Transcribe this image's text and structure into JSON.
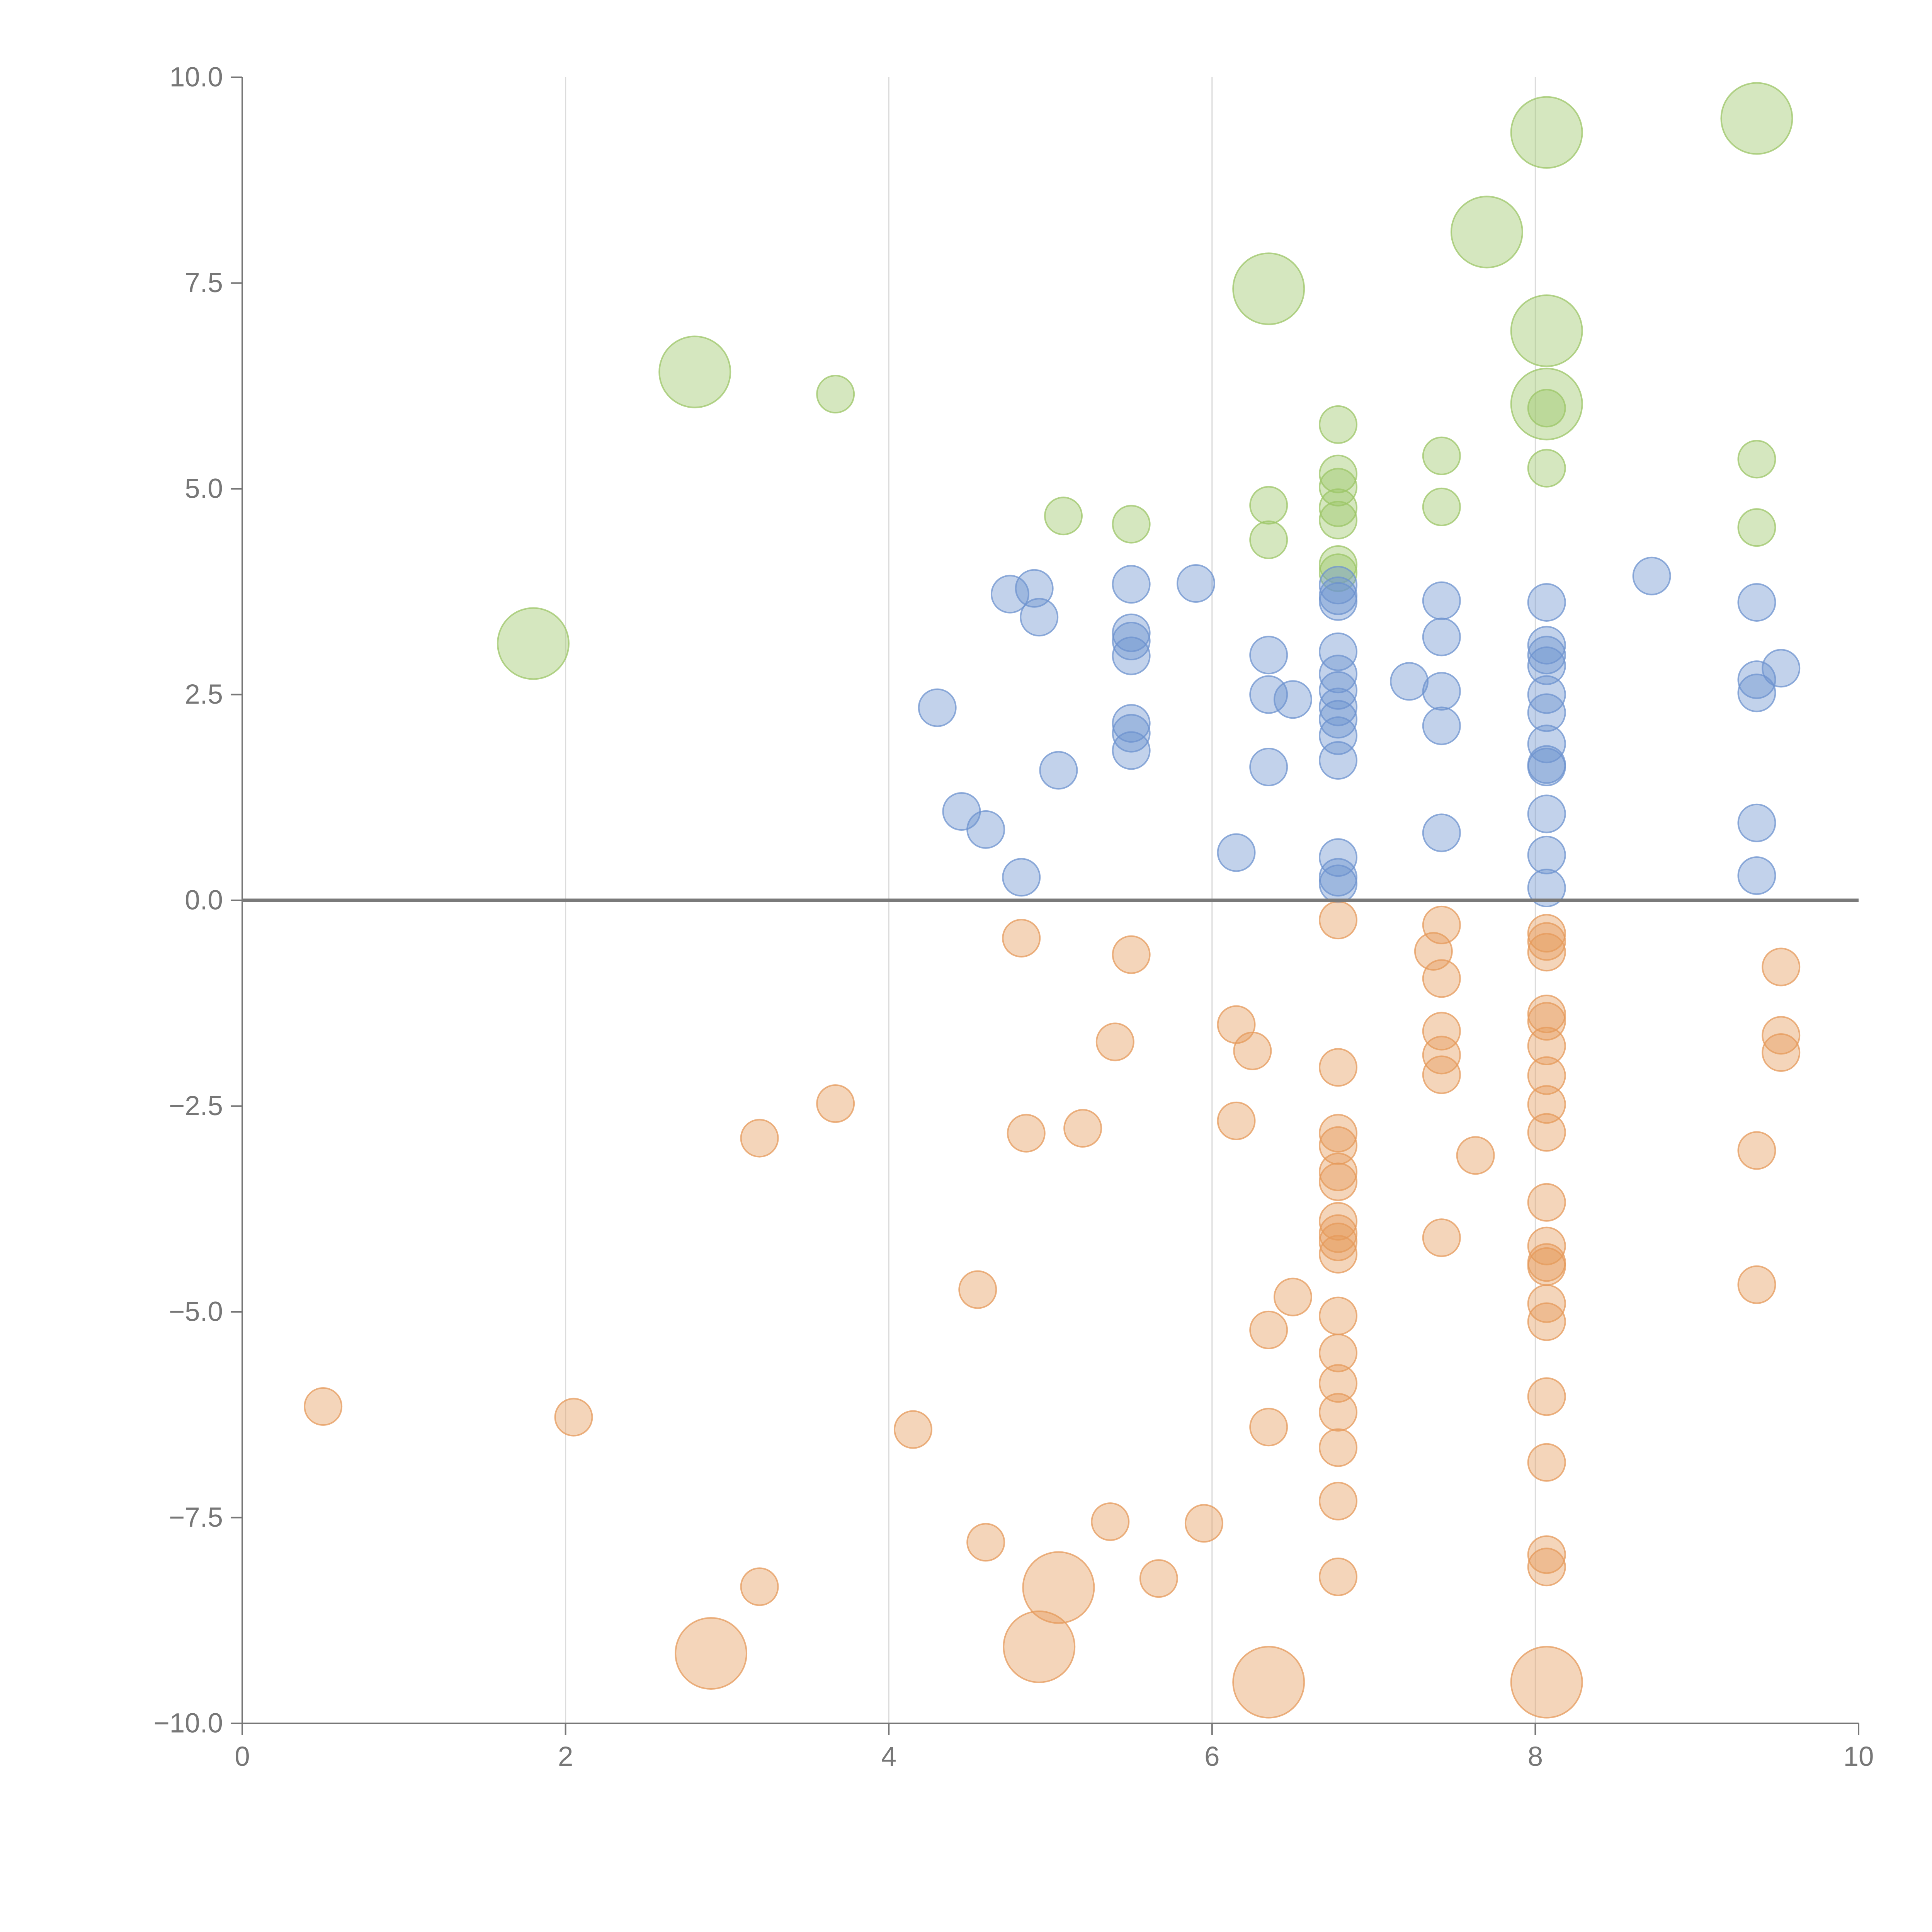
{
  "chart_data": {
    "type": "scatter",
    "title": "",
    "xlabel": "",
    "ylabel": "",
    "xlim": [
      0,
      10
    ],
    "ylim": [
      -10,
      10
    ],
    "grid": "vertical",
    "legend": "none",
    "x_ticks": [
      0,
      2,
      4,
      6,
      8,
      10
    ],
    "x_tick_labels": [
      "0",
      "2",
      "4",
      "6",
      "8",
      "10"
    ],
    "y_ticks": [
      -10,
      -7.5,
      -5,
      -2.5,
      0,
      2.5,
      5,
      7.5,
      10
    ],
    "y_tick_labels": [
      "−10.0",
      "−7.5",
      "−5.0",
      "−2.5",
      "0.0",
      "2.5",
      "5.0",
      "7.5",
      "10.0"
    ],
    "baseline": 0,
    "colors": {
      "green": "#9cc567",
      "blue": "#6d93cf",
      "orange": "#e59a5b"
    },
    "series": [
      {
        "name": "green",
        "color": "#9cc567",
        "points": [
          [
            1.8,
            3.12,
            2
          ],
          [
            2.8,
            6.42,
            2
          ],
          [
            3.67,
            6.15,
            1
          ],
          [
            5.08,
            4.67,
            1
          ],
          [
            5.5,
            4.57,
            1
          ],
          [
            6.35,
            7.43,
            2
          ],
          [
            6.35,
            4.8,
            1
          ],
          [
            6.35,
            4.38,
            1
          ],
          [
            6.78,
            5.78,
            1
          ],
          [
            6.78,
            5.18,
            1
          ],
          [
            6.78,
            5.02,
            1
          ],
          [
            6.78,
            4.77,
            1
          ],
          [
            6.78,
            4.62,
            1
          ],
          [
            6.78,
            4.08,
            1
          ],
          [
            6.78,
            3.98,
            1
          ],
          [
            7.42,
            5.4,
            1
          ],
          [
            7.42,
            4.78,
            1
          ],
          [
            7.7,
            8.12,
            2
          ],
          [
            8.07,
            9.33,
            2
          ],
          [
            8.07,
            6.92,
            2
          ],
          [
            8.07,
            6.03,
            2
          ],
          [
            8.07,
            5.98,
            1
          ],
          [
            8.07,
            5.25,
            1
          ],
          [
            9.37,
            9.5,
            2
          ],
          [
            9.37,
            5.36,
            1
          ],
          [
            9.37,
            4.53,
            1
          ]
        ]
      },
      {
        "name": "blue",
        "color": "#6d93cf",
        "points": [
          [
            4.3,
            2.34,
            1
          ],
          [
            4.45,
            1.08,
            1
          ],
          [
            4.6,
            0.86,
            1
          ],
          [
            4.75,
            3.72,
            1
          ],
          [
            4.82,
            0.28,
            1
          ],
          [
            4.9,
            3.79,
            1
          ],
          [
            4.93,
            3.44,
            1
          ],
          [
            5.05,
            1.58,
            1
          ],
          [
            5.5,
            3.84,
            1
          ],
          [
            5.5,
            3.25,
            1
          ],
          [
            5.5,
            3.15,
            1
          ],
          [
            5.5,
            2.97,
            1
          ],
          [
            5.5,
            2.15,
            1
          ],
          [
            5.5,
            2.03,
            1
          ],
          [
            5.5,
            1.82,
            1
          ],
          [
            5.9,
            3.85,
            1
          ],
          [
            6.15,
            0.58,
            1
          ],
          [
            6.35,
            2.98,
            1
          ],
          [
            6.35,
            2.5,
            1
          ],
          [
            6.35,
            1.62,
            1
          ],
          [
            6.5,
            2.44,
            1
          ],
          [
            6.78,
            3.83,
            1
          ],
          [
            6.78,
            3.7,
            1
          ],
          [
            6.78,
            3.63,
            1
          ],
          [
            6.78,
            3.02,
            1
          ],
          [
            6.78,
            2.75,
            1
          ],
          [
            6.78,
            2.55,
            1
          ],
          [
            6.78,
            2.35,
            1
          ],
          [
            6.78,
            2.2,
            1
          ],
          [
            6.78,
            2.0,
            1
          ],
          [
            6.78,
            1.7,
            1
          ],
          [
            6.78,
            0.52,
            1
          ],
          [
            6.78,
            0.28,
            1
          ],
          [
            6.78,
            0.2,
            1
          ],
          [
            7.22,
            2.66,
            1
          ],
          [
            7.42,
            3.64,
            1
          ],
          [
            7.42,
            3.2,
            1
          ],
          [
            7.42,
            2.54,
            1
          ],
          [
            7.42,
            2.12,
            1
          ],
          [
            7.42,
            0.82,
            1
          ],
          [
            8.07,
            3.62,
            1
          ],
          [
            8.07,
            3.1,
            1
          ],
          [
            8.07,
            2.98,
            1
          ],
          [
            8.07,
            2.85,
            1
          ],
          [
            8.07,
            2.5,
            1
          ],
          [
            8.07,
            2.28,
            1
          ],
          [
            8.07,
            1.9,
            1
          ],
          [
            8.07,
            1.65,
            1
          ],
          [
            8.07,
            1.62,
            1
          ],
          [
            8.07,
            1.05,
            1
          ],
          [
            8.07,
            0.55,
            1
          ],
          [
            8.07,
            0.15,
            1
          ],
          [
            8.72,
            3.94,
            1
          ],
          [
            9.37,
            3.62,
            1
          ],
          [
            9.37,
            2.68,
            1
          ],
          [
            9.37,
            2.52,
            1
          ],
          [
            9.37,
            0.94,
            1
          ],
          [
            9.37,
            0.3,
            1
          ],
          [
            9.52,
            2.82,
            1
          ]
        ]
      },
      {
        "name": "orange",
        "color": "#e59a5b",
        "points": [
          [
            0.5,
            -6.15,
            1
          ],
          [
            2.05,
            -6.28,
            1
          ],
          [
            2.9,
            -9.15,
            2
          ],
          [
            3.2,
            -2.89,
            1
          ],
          [
            3.2,
            -8.34,
            1
          ],
          [
            3.67,
            -2.47,
            1
          ],
          [
            4.15,
            -6.43,
            1
          ],
          [
            4.55,
            -4.73,
            1
          ],
          [
            4.6,
            -7.8,
            1
          ],
          [
            4.82,
            -0.46,
            1
          ],
          [
            4.85,
            -2.83,
            1
          ],
          [
            4.93,
            -9.07,
            2
          ],
          [
            5.05,
            -8.35,
            2
          ],
          [
            5.2,
            -2.77,
            1
          ],
          [
            5.37,
            -7.55,
            1
          ],
          [
            5.4,
            -1.72,
            1
          ],
          [
            5.5,
            -0.66,
            1
          ],
          [
            5.67,
            -8.24,
            1
          ],
          [
            5.95,
            -7.57,
            1
          ],
          [
            6.15,
            -1.51,
            1
          ],
          [
            6.15,
            -2.68,
            1
          ],
          [
            6.25,
            -1.83,
            1
          ],
          [
            6.35,
            -5.22,
            1
          ],
          [
            6.35,
            -6.4,
            1
          ],
          [
            6.35,
            -9.5,
            2
          ],
          [
            6.5,
            -4.82,
            1
          ],
          [
            6.78,
            -0.24,
            1
          ],
          [
            6.78,
            -2.03,
            1
          ],
          [
            6.78,
            -2.83,
            1
          ],
          [
            6.78,
            -2.98,
            1
          ],
          [
            6.78,
            -3.3,
            1
          ],
          [
            6.78,
            -3.42,
            1
          ],
          [
            6.78,
            -3.9,
            1
          ],
          [
            6.78,
            -4.05,
            1
          ],
          [
            6.78,
            -4.15,
            1
          ],
          [
            6.78,
            -4.3,
            1
          ],
          [
            6.78,
            -5.05,
            1
          ],
          [
            6.78,
            -5.5,
            1
          ],
          [
            6.78,
            -5.87,
            1
          ],
          [
            6.78,
            -6.22,
            1
          ],
          [
            6.78,
            -6.65,
            1
          ],
          [
            6.78,
            -7.3,
            1
          ],
          [
            6.78,
            -8.22,
            1
          ],
          [
            7.37,
            -0.62,
            1
          ],
          [
            7.42,
            -0.3,
            1
          ],
          [
            7.42,
            -0.95,
            1
          ],
          [
            7.42,
            -1.59,
            1
          ],
          [
            7.42,
            -1.88,
            1
          ],
          [
            7.42,
            -2.12,
            1
          ],
          [
            7.42,
            -4.1,
            1
          ],
          [
            7.63,
            -3.1,
            1
          ],
          [
            8.07,
            -0.4,
            1
          ],
          [
            8.07,
            -0.5,
            1
          ],
          [
            8.07,
            -0.63,
            1
          ],
          [
            8.07,
            -1.38,
            1
          ],
          [
            8.07,
            -1.47,
            1
          ],
          [
            8.07,
            -1.77,
            1
          ],
          [
            8.07,
            -2.13,
            1
          ],
          [
            8.07,
            -2.48,
            1
          ],
          [
            8.07,
            -2.82,
            1
          ],
          [
            8.07,
            -3.67,
            1
          ],
          [
            8.07,
            -4.2,
            1
          ],
          [
            8.07,
            -4.4,
            1
          ],
          [
            8.07,
            -4.45,
            1
          ],
          [
            8.07,
            -4.9,
            1
          ],
          [
            8.07,
            -5.12,
            1
          ],
          [
            8.07,
            -6.03,
            1
          ],
          [
            8.07,
            -6.83,
            1
          ],
          [
            8.07,
            -7.95,
            1
          ],
          [
            8.07,
            -8.1,
            1
          ],
          [
            8.07,
            -9.5,
            2
          ],
          [
            9.37,
            -3.04,
            1
          ],
          [
            9.37,
            -4.67,
            1
          ],
          [
            9.52,
            -0.81,
            1
          ],
          [
            9.52,
            -1.64,
            1
          ],
          [
            9.52,
            -1.85,
            1
          ]
        ]
      }
    ]
  }
}
